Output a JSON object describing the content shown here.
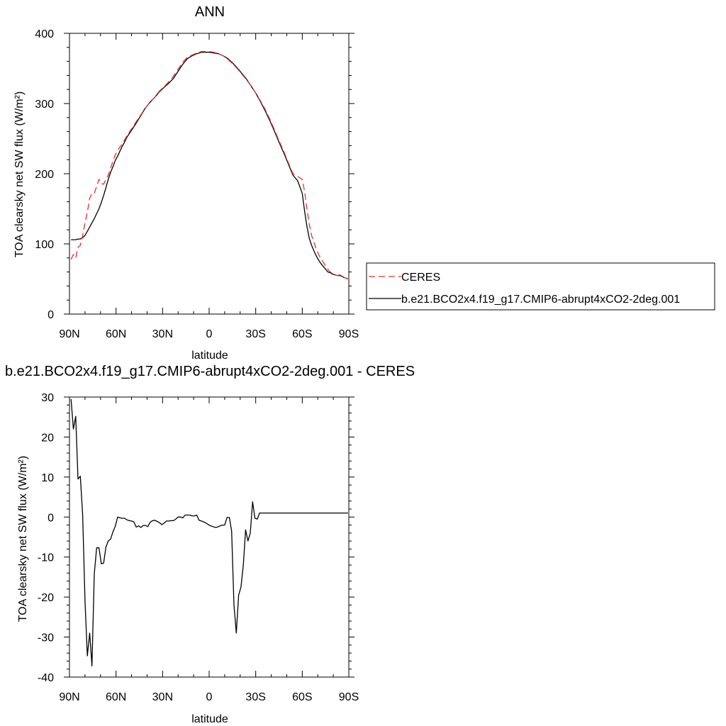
{
  "chart_data": [
    {
      "type": "line",
      "title": "ANN",
      "xlabel": "latitude",
      "ylabel": "TOA clearsky net SW flux (W/m²)",
      "xlim": [
        -90,
        90
      ],
      "ylim": [
        0,
        400
      ],
      "x_reversed": true,
      "x_ticks": [
        -90,
        -60,
        -30,
        0,
        30,
        60,
        90
      ],
      "x_tick_labels": [
        "90N",
        "60N",
        "30N",
        "0",
        "30S",
        "60S",
        "90S"
      ],
      "y_ticks": [
        0,
        100,
        200,
        300,
        400
      ],
      "y_tick_labels": [
        "0",
        "100",
        "200",
        "300",
        "400"
      ],
      "legend_placement": "right, outside plot",
      "series": [
        {
          "name": "CERES",
          "color": "#e8302a",
          "dash": "dashed",
          "x": [
            -89,
            -87.5,
            -86,
            -84.5,
            -83,
            -81.5,
            -80,
            -78.5,
            -77,
            -75.5,
            -74,
            -72.5,
            -71,
            -69.5,
            -68,
            -66.5,
            -65,
            -63.5,
            -62,
            -60.5,
            -59,
            -57.5,
            -56,
            -54.5,
            -53,
            -50,
            -47,
            -44,
            -41,
            -38,
            -35,
            -32,
            -29,
            -26,
            -23,
            -20,
            -17,
            -14,
            -11,
            -8,
            -5,
            -2,
            0,
            3,
            6,
            9,
            12,
            15,
            18,
            21,
            24,
            27,
            30,
            33,
            36,
            39,
            42,
            45,
            48,
            51,
            54,
            57,
            60,
            61.5,
            63,
            64.5,
            66,
            67.5,
            69,
            70.5,
            72,
            73.5,
            75,
            76.5,
            78,
            79.5,
            81,
            82.5,
            84,
            85.5,
            87,
            88.5,
            89.5
          ],
          "values": [
            78,
            85,
            80,
            95,
            98,
            112,
            130,
            145,
            165,
            172,
            172,
            182,
            192,
            186,
            185,
            192,
            198,
            208,
            218,
            227,
            233,
            238,
            242,
            248,
            254,
            264,
            274,
            284,
            294,
            302,
            309,
            318,
            324,
            331,
            339,
            349,
            359,
            366,
            369,
            372,
            374,
            374,
            374,
            373,
            371,
            368,
            363,
            357,
            350,
            342,
            334,
            325,
            315,
            304,
            292,
            278,
            263,
            247,
            232,
            216,
            200,
            196,
            192,
            175,
            150,
            128,
            112,
            102,
            93,
            85,
            79,
            74,
            69,
            64,
            60,
            58,
            56,
            55,
            56,
            54,
            52,
            51,
            50
          ]
        },
        {
          "name": "b.e21.BCO2x4.f19_g17.CMIP6-abrupt4xCO2-2deg.001",
          "color": "#000000",
          "dash": "solid",
          "x": [
            -89,
            -87.5,
            -86,
            -84.5,
            -83,
            -81.5,
            -80,
            -78.5,
            -77,
            -75.5,
            -74,
            -72.5,
            -71,
            -69.5,
            -68,
            -66.5,
            -65,
            -63.5,
            -62,
            -60.5,
            -59,
            -57.5,
            -56,
            -54.5,
            -53,
            -50,
            -47,
            -44,
            -41,
            -38,
            -35,
            -32,
            -29,
            -26,
            -23,
            -20,
            -17,
            -14,
            -11,
            -8,
            -5,
            -2,
            0,
            3,
            6,
            9,
            12,
            15,
            18,
            21,
            24,
            27,
            30,
            33,
            36,
            39,
            42,
            45,
            48,
            51,
            54,
            57,
            60,
            61.5,
            63,
            64.5,
            66,
            67.5,
            69,
            70.5,
            72,
            73.5,
            75,
            76.5,
            78,
            79.5,
            81,
            82.5,
            84,
            85.5,
            87,
            88.5,
            89.5
          ],
          "values": [
            106,
            106,
            106,
            107,
            107,
            109,
            112,
            118,
            124,
            130,
            136,
            143,
            150,
            159,
            169,
            180,
            192,
            202,
            210,
            219,
            225,
            232,
            239,
            245,
            252,
            262,
            272,
            283,
            294,
            302,
            309,
            317,
            323,
            329,
            336,
            346,
            356,
            364,
            368,
            371,
            373,
            373,
            373,
            372,
            371,
            368,
            364,
            358,
            351,
            343,
            335,
            325,
            315,
            303,
            290,
            276,
            261,
            245,
            230,
            214,
            198,
            190,
            172,
            147,
            125,
            108,
            98,
            90,
            83,
            77,
            72,
            68,
            64,
            60,
            59,
            57,
            56,
            55,
            55,
            54,
            52,
            51,
            50
          ]
        }
      ]
    },
    {
      "type": "line",
      "title": "b.e21.BCO2x4.f19_g17.CMIP6-abrupt4xCO2-2deg.001 - CERES",
      "xlabel": "latitude",
      "ylabel": "TOA clearsky net SW flux (W/m²)",
      "xlim": [
        -90,
        90
      ],
      "ylim": [
        -40,
        30
      ],
      "x_reversed": true,
      "x_ticks": [
        -90,
        -60,
        -30,
        0,
        30,
        60,
        90
      ],
      "x_tick_labels": [
        "90N",
        "60N",
        "30N",
        "0",
        "30S",
        "60S",
        "90S"
      ],
      "y_ticks": [
        -40,
        -30,
        -20,
        -10,
        0,
        10,
        20,
        30
      ],
      "y_tick_labels": [
        "-40",
        "-30",
        "-20",
        "-10",
        "0",
        "10",
        "20",
        "30"
      ],
      "series": [
        {
          "color": "#000000",
          "dash": "solid",
          "x": [
            -89,
            -87.5,
            -86,
            -84.5,
            -83,
            -81.5,
            -80,
            -78.5,
            -77,
            -75.5,
            -74,
            -72.5,
            -71,
            -69.5,
            -68,
            -66.5,
            -65,
            -63.5,
            -62,
            -60.5,
            -59,
            -57.5,
            -56,
            -54.5,
            -53,
            -51.5,
            -50,
            -48.5,
            -47,
            -45.5,
            -44,
            -42.5,
            -41,
            -39.5,
            -38,
            -36.5,
            -35,
            -33.5,
            -32,
            -30.5,
            -29,
            -27.5,
            -26,
            -24.5,
            -23,
            -21.5,
            -20,
            -18.5,
            -17,
            -15.5,
            -14,
            -12.5,
            -11,
            -9.5,
            -8,
            -6.5,
            -5,
            -3.5,
            -2,
            -0.5,
            1,
            2.5,
            4,
            5.5,
            7,
            8.5,
            10,
            11.5,
            13,
            14.5,
            16,
            17.5,
            19,
            20.5,
            22,
            23.5,
            25,
            26.5,
            28,
            29.5,
            31,
            32.5,
            34,
            35.5,
            37,
            38.5,
            40,
            41.5,
            43,
            44.5,
            46,
            47.5,
            49,
            50.5,
            52,
            53.5,
            55,
            56.5,
            58,
            59.5,
            61,
            62.5,
            64,
            65.5,
            67,
            68.5,
            70,
            71.5,
            73,
            74.5,
            76,
            77.5,
            79,
            80.5,
            82,
            83.5,
            85,
            86.5,
            88,
            89.5
          ],
          "values": [
            29.5,
            22,
            25.2,
            9.5,
            10.2,
            0.5,
            -21,
            -34.7,
            -29,
            -37.2,
            -14.2,
            -7.7,
            -7.7,
            -11.7,
            -11.5,
            -7.5,
            -6,
            -5.5,
            -3.7,
            -2.3,
            0,
            -0.2,
            -0.3,
            -0.3,
            -0.7,
            -0.9,
            -1,
            -1.2,
            -2.5,
            -2.2,
            -2.6,
            -2.1,
            -2.1,
            -2.4,
            -1.3,
            -0.9,
            -0.8,
            -1.1,
            -1.4,
            -1.9,
            -1.5,
            -1,
            -1,
            -0.9,
            -0.9,
            -0.5,
            0,
            0,
            -0.2,
            0.5,
            0.5,
            0.5,
            0.3,
            0.3,
            0.5,
            -0.8,
            -1,
            -1.2,
            -1.5,
            -1.9,
            -2.2,
            -2.4,
            -2.6,
            -2.5,
            -2.2,
            -2,
            -2,
            -0.1,
            -0.1,
            -3.5,
            -22,
            -29,
            -19.5,
            -17.5,
            -12,
            -3.2,
            -6,
            -4,
            3.8,
            -0.3,
            -0.5,
            1,
            1,
            1,
            1,
            1,
            1,
            1,
            1,
            1,
            1,
            1,
            1,
            1,
            1,
            1,
            1,
            1,
            1,
            1,
            1,
            1,
            1,
            1,
            1,
            1,
            1,
            1,
            1,
            1,
            1,
            1,
            1,
            1,
            1,
            1,
            1,
            1,
            1,
            1
          ]
        }
      ]
    }
  ]
}
